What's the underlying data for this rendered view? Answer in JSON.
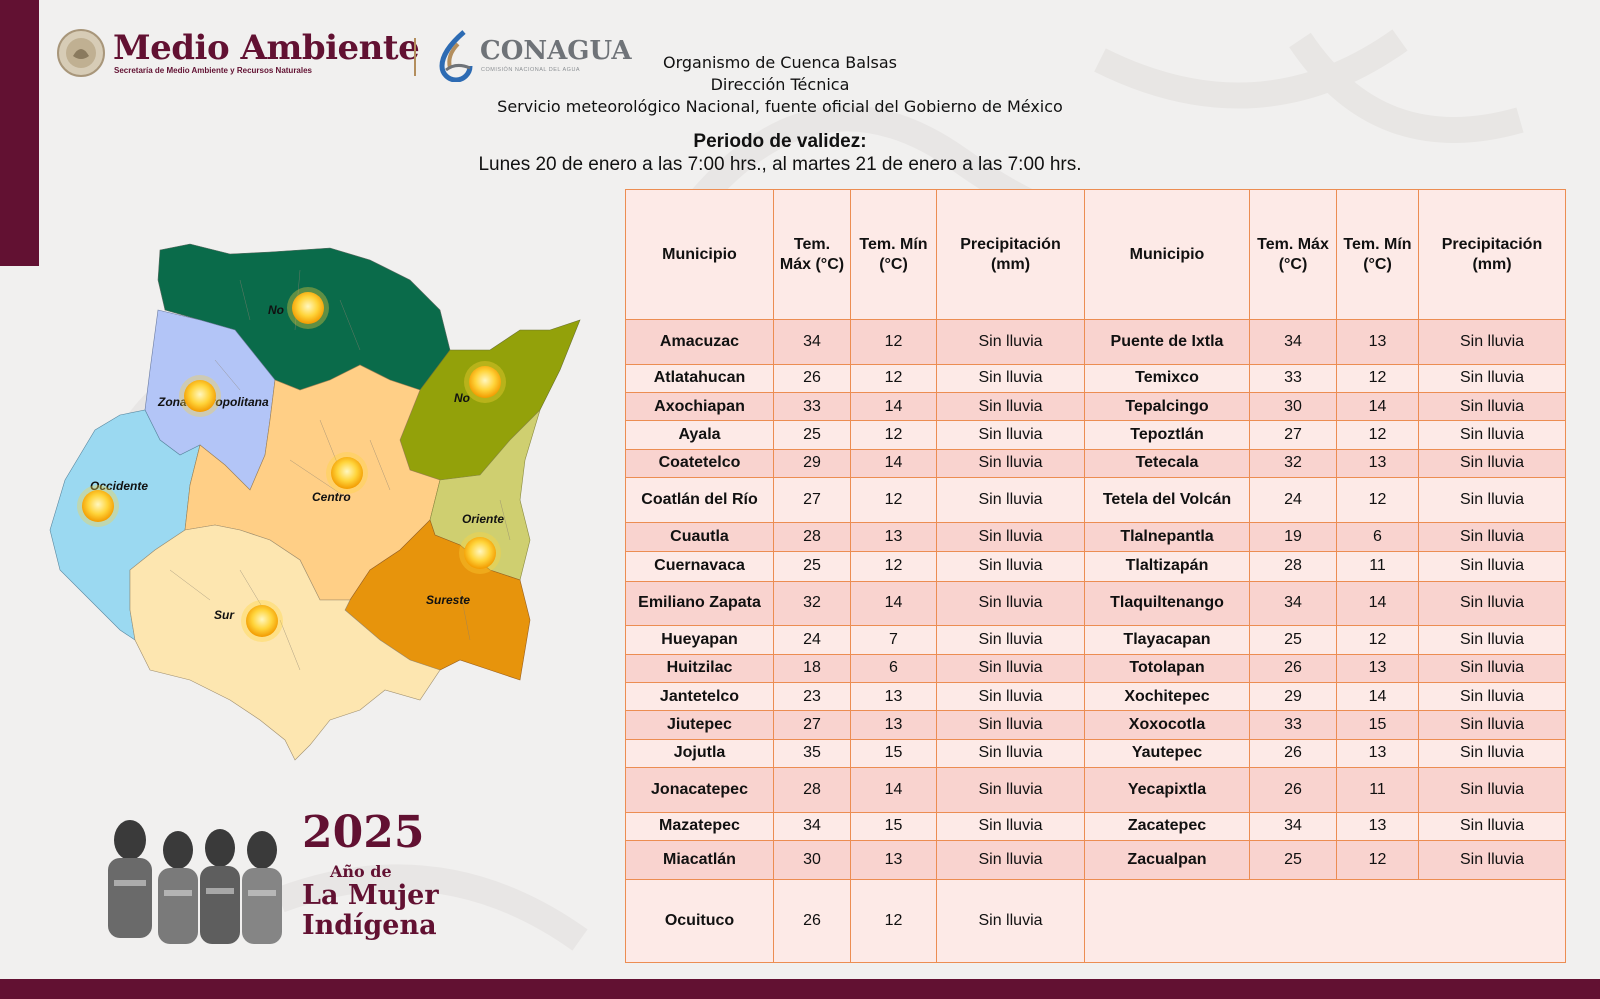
{
  "header": {
    "brand_title": "Medio Ambiente",
    "brand_subtitle": "Secretaría de Medio Ambiente y Recursos Naturales",
    "agency_name": "CONAGUA",
    "agency_subtitle": "COMISIÓN NACIONAL DEL AGUA",
    "org_line1": "Organismo de Cuenca Balsas",
    "org_line2": "Dirección Técnica",
    "org_line3": "Servicio meteorológico Nacional, fuente oficial del Gobierno de México"
  },
  "validity": {
    "title": "Periodo de validez:",
    "dates": "Lunes 20 de enero a las 7:00 hrs., al martes 21 de enero a las 7:00 hrs."
  },
  "table": {
    "headers": {
      "municipio": "Municipio",
      "tmax": "Tem. Máx (°C)",
      "tmin": "Tem. Mín (°C)",
      "precip": "Precipitación (mm)"
    },
    "rows": [
      {
        "left": {
          "municipio": "Amacuzac",
          "tmax": "34",
          "tmin": "12",
          "precip": "Sin lluvia"
        },
        "right": {
          "municipio": "Puente de Ixtla",
          "tmax": "34",
          "tmin": "13",
          "precip": "Sin lluvia"
        }
      },
      {
        "left": {
          "municipio": "Atlatahucan",
          "tmax": "26",
          "tmin": "12",
          "precip": "Sin lluvia"
        },
        "right": {
          "municipio": "Temixco",
          "tmax": "33",
          "tmin": "12",
          "precip": "Sin lluvia"
        }
      },
      {
        "left": {
          "municipio": "Axochiapan",
          "tmax": "33",
          "tmin": "14",
          "precip": "Sin lluvia"
        },
        "right": {
          "municipio": "Tepalcingo",
          "tmax": "30",
          "tmin": "14",
          "precip": "Sin lluvia"
        }
      },
      {
        "left": {
          "municipio": "Ayala",
          "tmax": "25",
          "tmin": "12",
          "precip": "Sin lluvia"
        },
        "right": {
          "municipio": "Tepoztlán",
          "tmax": "27",
          "tmin": "12",
          "precip": "Sin lluvia"
        }
      },
      {
        "left": {
          "municipio": "Coatetelco",
          "tmax": "29",
          "tmin": "14",
          "precip": "Sin lluvia"
        },
        "right": {
          "municipio": "Tetecala",
          "tmax": "32",
          "tmin": "13",
          "precip": "Sin lluvia"
        }
      },
      {
        "left": {
          "municipio": "Coatlán del Río",
          "tmax": "27",
          "tmin": "12",
          "precip": "Sin lluvia"
        },
        "right": {
          "municipio": "Tetela del Volcán",
          "tmax": "24",
          "tmin": "12",
          "precip": "Sin lluvia"
        }
      },
      {
        "left": {
          "municipio": "Cuautla",
          "tmax": "28",
          "tmin": "13",
          "precip": "Sin lluvia"
        },
        "right": {
          "municipio": "Tlalnepantla",
          "tmax": "19",
          "tmin": "6",
          "precip": "Sin lluvia"
        }
      },
      {
        "left": {
          "municipio": "Cuernavaca",
          "tmax": "25",
          "tmin": "12",
          "precip": "Sin lluvia"
        },
        "right": {
          "municipio": "Tlaltizapán",
          "tmax": "28",
          "tmin": "11",
          "precip": "Sin lluvia"
        }
      },
      {
        "left": {
          "municipio": "Emiliano Zapata",
          "tmax": "32",
          "tmin": "14",
          "precip": "Sin lluvia"
        },
        "right": {
          "municipio": "Tlaquiltenango",
          "tmax": "34",
          "tmin": "14",
          "precip": "Sin lluvia"
        }
      },
      {
        "left": {
          "municipio": "Hueyapan",
          "tmax": "24",
          "tmin": "7",
          "precip": "Sin lluvia"
        },
        "right": {
          "municipio": "Tlayacapan",
          "tmax": "25",
          "tmin": "12",
          "precip": "Sin lluvia"
        }
      },
      {
        "left": {
          "municipio": "Huitzilac",
          "tmax": "18",
          "tmin": "6",
          "precip": "Sin lluvia"
        },
        "right": {
          "municipio": "Totolapan",
          "tmax": "26",
          "tmin": "13",
          "precip": "Sin lluvia"
        }
      },
      {
        "left": {
          "municipio": "Jantetelco",
          "tmax": "23",
          "tmin": "13",
          "precip": "Sin lluvia"
        },
        "right": {
          "municipio": "Xochitepec",
          "tmax": "29",
          "tmin": "14",
          "precip": "Sin lluvia"
        }
      },
      {
        "left": {
          "municipio": "Jiutepec",
          "tmax": "27",
          "tmin": "13",
          "precip": "Sin lluvia"
        },
        "right": {
          "municipio": "Xoxocotla",
          "tmax": "33",
          "tmin": "15",
          "precip": "Sin lluvia"
        }
      },
      {
        "left": {
          "municipio": "Jojutla",
          "tmax": "35",
          "tmin": "15",
          "precip": "Sin lluvia"
        },
        "right": {
          "municipio": "Yautepec",
          "tmax": "26",
          "tmin": "13",
          "precip": "Sin lluvia"
        }
      },
      {
        "left": {
          "municipio": "Jonacatepec",
          "tmax": "28",
          "tmin": "14",
          "precip": "Sin lluvia"
        },
        "right": {
          "municipio": "Yecapixtla",
          "tmax": "26",
          "tmin": "11",
          "precip": "Sin lluvia"
        }
      },
      {
        "left": {
          "municipio": "Mazatepec",
          "tmax": "34",
          "tmin": "15",
          "precip": "Sin lluvia"
        },
        "right": {
          "municipio": "Zacatepec",
          "tmax": "34",
          "tmin": "13",
          "precip": "Sin lluvia"
        }
      },
      {
        "left": {
          "municipio": "Miacatlán",
          "tmax": "30",
          "tmin": "13",
          "precip": "Sin lluvia"
        },
        "right": {
          "municipio": "Zacualpan",
          "tmax": "25",
          "tmin": "12",
          "precip": "Sin lluvia"
        }
      },
      {
        "left": {
          "municipio": "Ocuituco",
          "tmax": "26",
          "tmin": "12",
          "precip": "Sin lluvia"
        },
        "right": null
      }
    ]
  },
  "map": {
    "regions": [
      {
        "label": "No",
        "weather_icon": "sun-icon",
        "color": "#0a6b4a"
      },
      {
        "label": "Zona Metropolitana",
        "weather_icon": "sun-icon",
        "color": "#b3c5f7"
      },
      {
        "label": "No",
        "weather_icon": "sun-icon",
        "color": "#93a10a"
      },
      {
        "label": "Occidente",
        "weather_icon": "sun-icon",
        "color": "#9bd9f1"
      },
      {
        "label": "Centro",
        "weather_icon": "sun-icon",
        "color": "#ffcf86"
      },
      {
        "label": "Oriente",
        "weather_icon": "sun-icon",
        "color": "#cfcf70"
      },
      {
        "label": "Sureste",
        "weather_icon": "sun-icon",
        "color": "#e7940c"
      },
      {
        "label": "Sur",
        "weather_icon": "sun-icon",
        "color": "#fde6b0"
      }
    ]
  },
  "footer_badge": {
    "year": "2025",
    "line1": "Año de",
    "line2": "La Mujer",
    "line3": "Indígena"
  },
  "colors": {
    "brand": "#621132",
    "table_border": "#ec8d52",
    "row_dark": "#f9d3cf",
    "row_light": "#fdeae7"
  }
}
